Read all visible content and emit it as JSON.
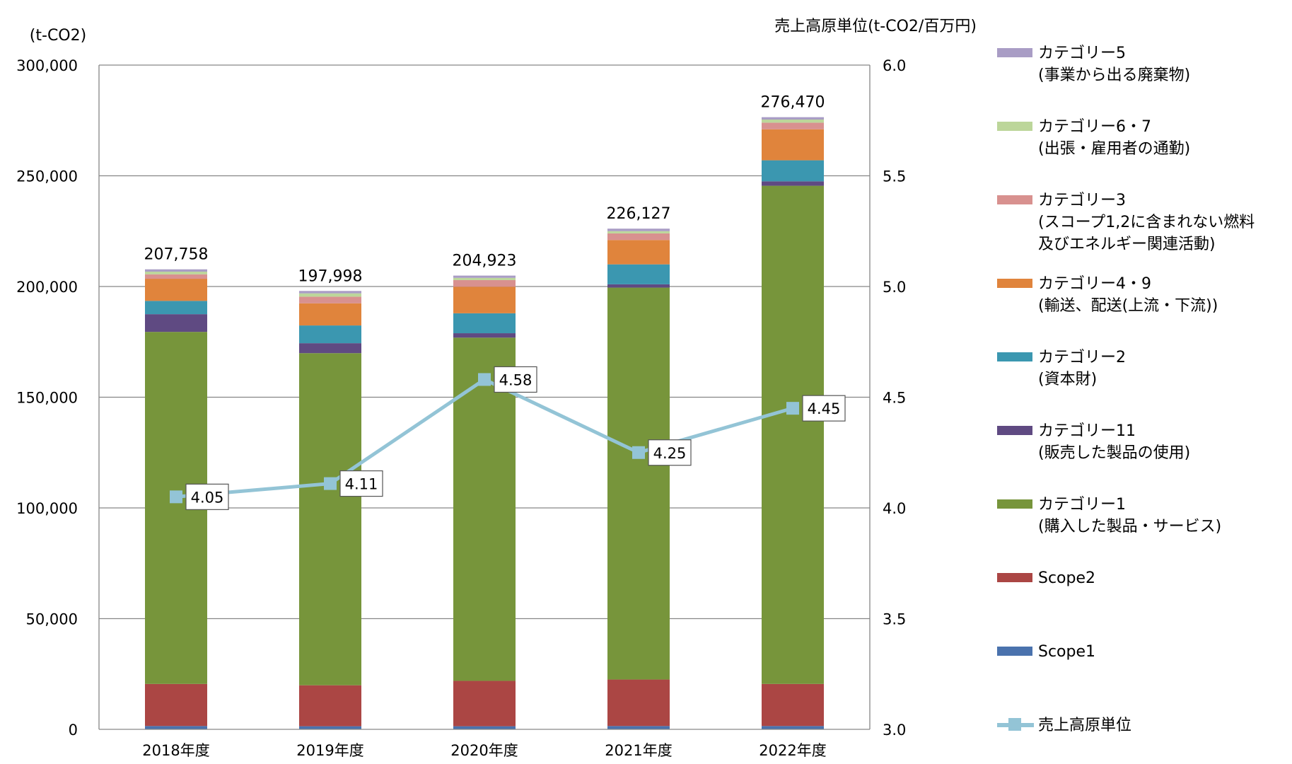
{
  "chart_data": {
    "type": "bar",
    "stacked": true,
    "categories": [
      "2018年度",
      "2019年度",
      "2020年度",
      "2021年度",
      "2022年度"
    ],
    "left_axis": {
      "unit_label": "(t-CO2)",
      "ylim": [
        0,
        300000
      ],
      "ticks": [
        "0",
        "50,000",
        "100,000",
        "150,000",
        "200,000",
        "250,000",
        "300,000"
      ],
      "tick_values": [
        0,
        50000,
        100000,
        150000,
        200000,
        250000,
        300000
      ]
    },
    "right_axis": {
      "unit_label": "売上高原単位(t-CO2/百万円)",
      "ylim": [
        3.0,
        6.0
      ],
      "ticks": [
        "3.0",
        "3.5",
        "4.0",
        "4.5",
        "5.0",
        "5.5",
        "6.0"
      ],
      "tick_values": [
        3.0,
        3.5,
        4.0,
        4.5,
        5.0,
        5.5,
        6.0
      ]
    },
    "grid": true,
    "legend_position": "right",
    "series": [
      {
        "name": "Scope1",
        "color": "#4a72ad",
        "values": [
          1500,
          1400,
          1400,
          1500,
          1500
        ]
      },
      {
        "name": "Scope2",
        "color": "#ab4644",
        "values": [
          19000,
          18500,
          20500,
          21000,
          19000
        ]
      },
      {
        "name": "カテゴリー1\n(購入した製品・サービス)",
        "color": "#77953b",
        "values": [
          159000,
          150000,
          155000,
          177000,
          225000
        ]
      },
      {
        "name": "カテゴリー11\n(販売した製品の使用)",
        "color": "#5f4a82",
        "values": [
          8000,
          4500,
          2000,
          1500,
          2000
        ]
      },
      {
        "name": "カテゴリー2\n(資本財)",
        "color": "#3b97b0",
        "values": [
          6000,
          8000,
          9000,
          9000,
          9500
        ]
      },
      {
        "name": "カテゴリー4・9\n(輸送、配送(上流・下流))",
        "color": "#e0843c",
        "values": [
          10000,
          10000,
          12000,
          11000,
          14000
        ]
      },
      {
        "name": "カテゴリー3\n(スコープ1,2に含まれない燃料\n及びエネルギー関連活動)",
        "color": "#d8918f",
        "values": [
          2000,
          3000,
          3000,
          3000,
          3000
        ]
      },
      {
        "name": "カテゴリー6・7\n(出張・雇用者の通勤)",
        "color": "#bcd69a",
        "values": [
          1200,
          1500,
          1000,
          1000,
          1400
        ]
      },
      {
        "name": "カテゴリー5\n(事業から出る廃棄物)",
        "color": "#a99dc5",
        "values": [
          1058,
          1098,
          1023,
          1127,
          1070
        ]
      }
    ],
    "totals": [
      207758,
      197998,
      204923,
      226127,
      276470
    ],
    "total_labels": [
      "207,758",
      "197,998",
      "204,923",
      "226,127",
      "276,470"
    ],
    "line_series": {
      "name": "売上高原単位",
      "color": "#93c4d6",
      "axis": "right",
      "values": [
        4.05,
        4.11,
        4.58,
        4.25,
        4.45
      ],
      "labels": [
        "4.05",
        "4.11",
        "4.58",
        "4.25",
        "4.45"
      ]
    },
    "legend_order": [
      "カテゴリー5\n(事業から出る廃棄物)",
      "カテゴリー6・7\n(出張・雇用者の通勤)",
      "カテゴリー3\n(スコープ1,2に含まれない燃料\n及びエネルギー関連活動)",
      "カテゴリー4・9\n(輸送、配送(上流・下流))",
      "カテゴリー2\n(資本財)",
      "カテゴリー11\n(販売した製品の使用)",
      "カテゴリー1\n(購入した製品・サービス)",
      "Scope2",
      "Scope1",
      "売上高原単位"
    ]
  }
}
